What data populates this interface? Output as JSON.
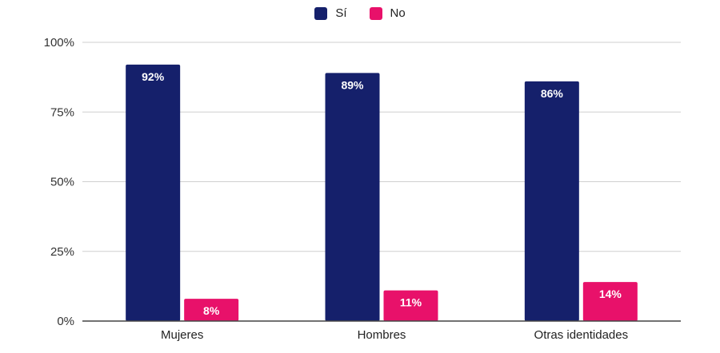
{
  "chart_data": {
    "type": "bar",
    "title": "",
    "xlabel": "",
    "ylabel": "",
    "categories": [
      "Mujeres",
      "Hombres",
      "Otras identidades"
    ],
    "series": [
      {
        "name": "Sí",
        "color": "#15206b",
        "values": [
          92,
          89,
          86
        ],
        "labels": [
          "92%",
          "89%",
          "86%"
        ]
      },
      {
        "name": "No",
        "color": "#e8116a",
        "values": [
          8,
          11,
          14
        ],
        "labels": [
          "8%",
          "11%",
          "14%"
        ]
      }
    ],
    "ylim": [
      0,
      100
    ],
    "yticks": [
      0,
      25,
      50,
      75,
      100
    ],
    "ytick_labels": [
      "0%",
      "25%",
      "50%",
      "75%",
      "100%"
    ],
    "grid": true,
    "legend_position": "top-center"
  }
}
